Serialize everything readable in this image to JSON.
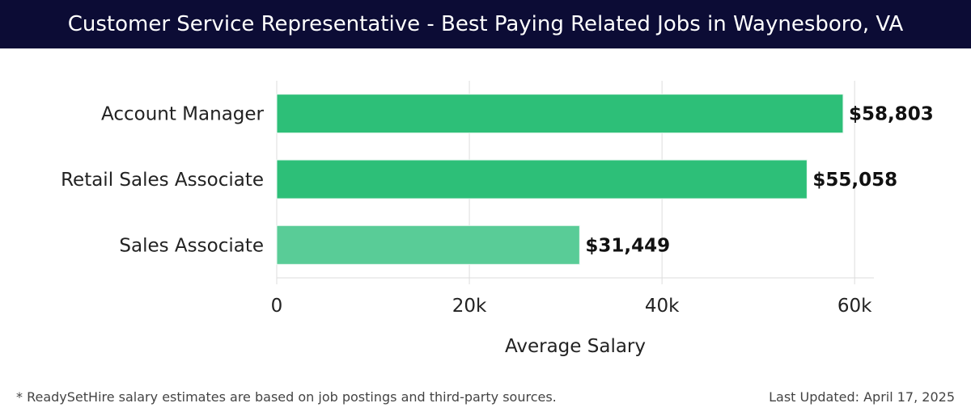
{
  "header": {
    "title": "Customer Service Representative - Best Paying Related Jobs in Waynesboro, VA"
  },
  "footer": {
    "note": "* ReadySetHire salary estimates are based on job postings and third-party sources.",
    "updated": "Last Updated: April 17, 2025"
  },
  "colors": {
    "header_bg": "#0c0c35",
    "bar_primary": "#2dbf78",
    "bar_light": "#59cc97"
  },
  "chart_data": {
    "type": "bar",
    "orientation": "horizontal",
    "categories": [
      "Account Manager",
      "Retail Sales Associate",
      "Sales Associate"
    ],
    "values": [
      58803,
      55058,
      31449
    ],
    "value_labels": [
      "$58,803",
      "$55,058",
      "$31,449"
    ],
    "xlabel": "Average Salary",
    "ylabel": "",
    "xlim": [
      0,
      62000
    ],
    "xticks": [
      0,
      20000,
      40000,
      60000
    ],
    "xtick_labels": [
      "0",
      "20k",
      "40k",
      "60k"
    ],
    "grid": true
  }
}
